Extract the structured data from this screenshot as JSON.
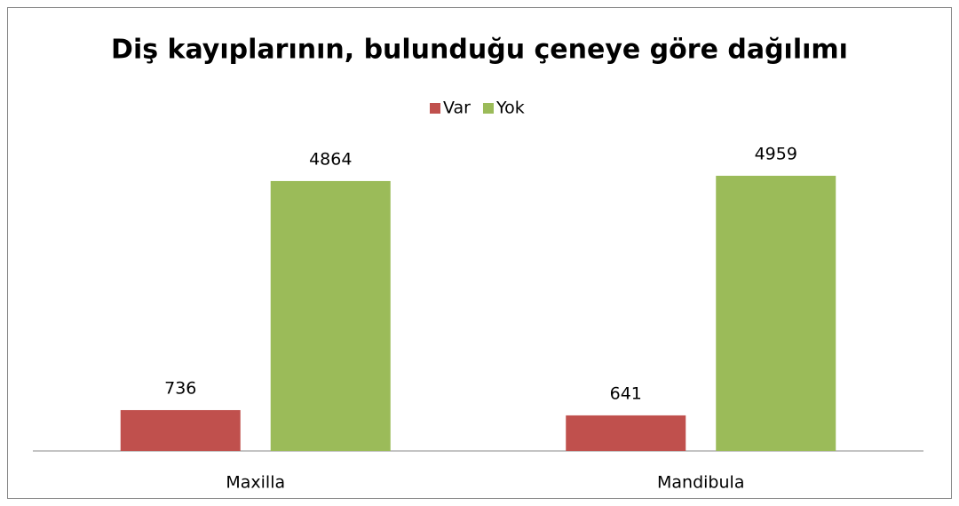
{
  "chart_data": {
    "type": "bar",
    "title": "Diş kayıplarının, bulunduğu çeneye göre dağılımı",
    "categories": [
      "Maxilla",
      "Mandibula"
    ],
    "series": [
      {
        "name": "Var",
        "color": "#c0504d",
        "values": [
          736,
          641
        ]
      },
      {
        "name": "Yok",
        "color": "#9bbb59",
        "values": [
          4864,
          4959
        ]
      }
    ],
    "legend": "top"
  }
}
